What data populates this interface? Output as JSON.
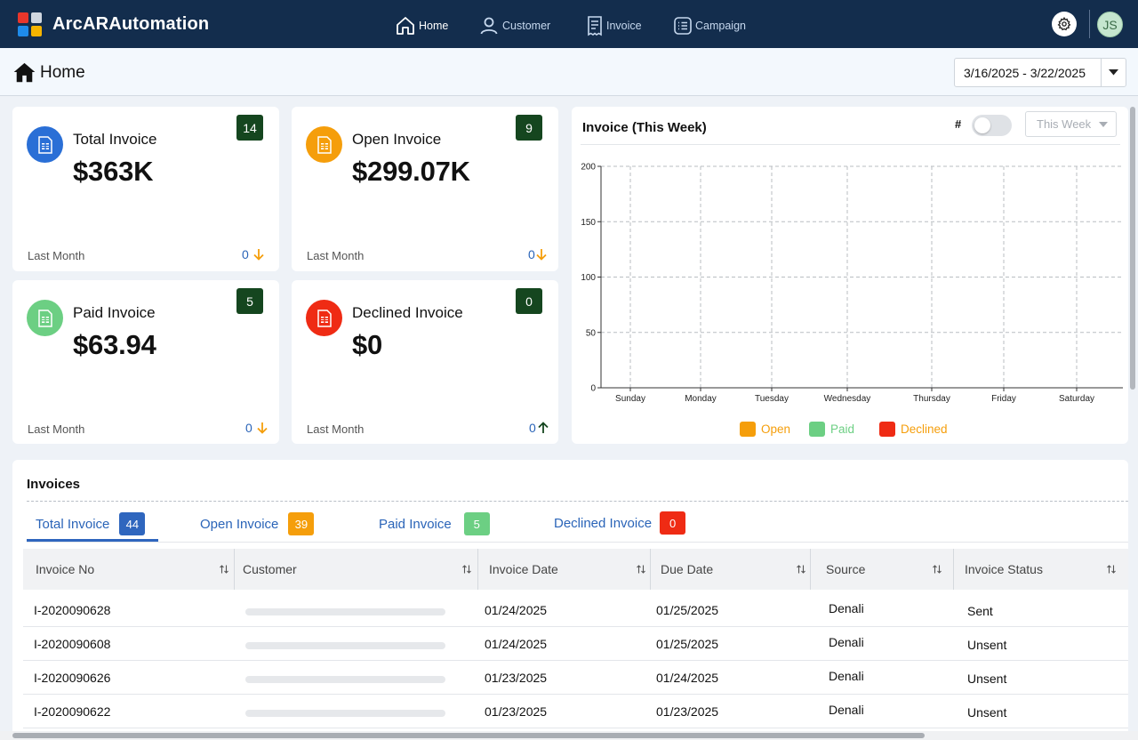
{
  "app": {
    "name": "ArcARAutomation"
  },
  "nav": {
    "home": "Home",
    "customer": "Customer",
    "invoice": "Invoice",
    "campaign": "Campaign",
    "avatar_initials": "JS"
  },
  "page": {
    "title": "Home",
    "date_range": "3/16/2025 - 3/22/2025"
  },
  "cards": {
    "total": {
      "title": "Total Invoice",
      "value": "$363K",
      "badge": "14",
      "footer": "Last Month",
      "change": "0",
      "trend": "down"
    },
    "open": {
      "title": "Open Invoice",
      "value": "$299.07K",
      "badge": "9",
      "footer": "Last Month",
      "change": "0",
      "trend": "down"
    },
    "paid": {
      "title": "Paid Invoice",
      "value": "$63.94",
      "badge": "5",
      "footer": "Last Month",
      "change": "0",
      "trend": "down"
    },
    "declined": {
      "title": "Declined Invoice",
      "value": "$0",
      "badge": "0",
      "footer": "Last Month",
      "change": "0",
      "trend": "up"
    }
  },
  "chart_panel": {
    "title": "Invoice (This Week)",
    "toggle_label": "#",
    "period": "This Week"
  },
  "chart_data": {
    "type": "bar",
    "title": "Invoice (This Week)",
    "categories": [
      "Sunday",
      "Monday",
      "Tuesday",
      "Wednesday",
      "Thursday",
      "Friday",
      "Saturday"
    ],
    "series": [
      {
        "name": "Open",
        "values": [
          0,
          0,
          0,
          0,
          0,
          0,
          0
        ],
        "color": "#f59e0b"
      },
      {
        "name": "Paid",
        "values": [
          0,
          0,
          0,
          0,
          0,
          0,
          0
        ],
        "color": "#6ccf83"
      },
      {
        "name": "Declined",
        "values": [
          0,
          0,
          0,
          0,
          0,
          0,
          0
        ],
        "color": "#ef2b14"
      }
    ],
    "yticks": [
      0,
      50,
      100,
      150,
      200
    ],
    "ylim": [
      0,
      200
    ],
    "xlabel": "",
    "ylabel": "",
    "grid": true,
    "legend_position": "bottom"
  },
  "invoices": {
    "title": "Invoices",
    "tabs": [
      {
        "label": "Total Invoice",
        "count": "44",
        "color": "#2f66be"
      },
      {
        "label": "Open Invoice",
        "count": "39",
        "color": "#f59e0b"
      },
      {
        "label": "Paid Invoice",
        "count": "5",
        "color": "#6ccf83"
      },
      {
        "label": "Declined Invoice",
        "count": "0",
        "color": "#ef2b14"
      }
    ],
    "columns": [
      "Invoice No",
      "Customer",
      "Invoice Date",
      "Due Date",
      "Source",
      "Invoice Status"
    ],
    "rows": [
      {
        "invoice_no": "I-2020090628",
        "invoice_date": "01/24/2025",
        "due_date": "01/25/2025",
        "source": "Denali",
        "status": "Sent"
      },
      {
        "invoice_no": "I-2020090608",
        "invoice_date": "01/24/2025",
        "due_date": "01/25/2025",
        "source": "Denali",
        "status": "Unsent"
      },
      {
        "invoice_no": "I-2020090626",
        "invoice_date": "01/23/2025",
        "due_date": "01/24/2025",
        "source": "Denali",
        "status": "Unsent"
      },
      {
        "invoice_no": "I-2020090622",
        "invoice_date": "01/23/2025",
        "due_date": "01/23/2025",
        "source": "Denali",
        "status": "Unsent"
      }
    ]
  },
  "colors": {
    "navbar": "#132d4d",
    "badge_dark_green": "#15461f",
    "total_icon": "#2a6fd6",
    "open_icon": "#f59e0b",
    "paid_icon": "#6ccf83",
    "declined_icon": "#ef2b14",
    "link_blue": "#2a64b8"
  }
}
